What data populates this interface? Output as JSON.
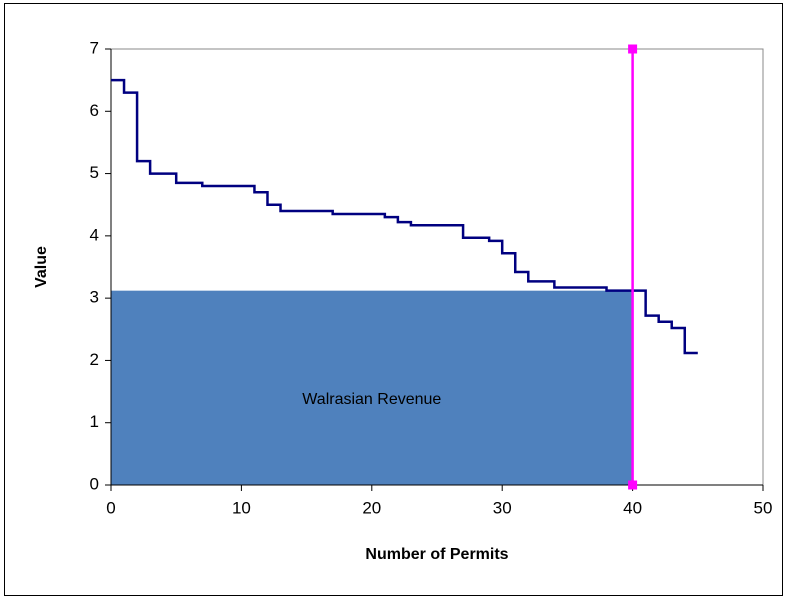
{
  "chart_data": {
    "type": "line",
    "x_label": "Number of Permits",
    "y_label": "Value",
    "xlim": [
      0,
      50
    ],
    "xticks": [
      0,
      10,
      20,
      30,
      40,
      50
    ],
    "ylim": [
      0,
      7
    ],
    "yticks": [
      0,
      1,
      2,
      3,
      4,
      5,
      6,
      7
    ],
    "grid": false,
    "series": [
      {
        "color": "#000080",
        "x": [
          0,
          1,
          1,
          2,
          2,
          3,
          3,
          5,
          5,
          7,
          7,
          11,
          11,
          12,
          12,
          13,
          13,
          17,
          17,
          21,
          21,
          22,
          22,
          23,
          23,
          27,
          27,
          29,
          29,
          30,
          30,
          31,
          31,
          32,
          32,
          34,
          34,
          38,
          38,
          41,
          41,
          42,
          42,
          43,
          43,
          44,
          44,
          45
        ],
        "values": [
          6.5,
          6.5,
          6.3,
          6.3,
          5.2,
          5.2,
          5.0,
          5.0,
          4.85,
          4.85,
          4.8,
          4.8,
          4.7,
          4.7,
          4.5,
          4.5,
          4.4,
          4.4,
          4.35,
          4.35,
          4.3,
          4.3,
          4.22,
          4.22,
          4.17,
          4.17,
          3.97,
          3.97,
          3.92,
          3.92,
          3.72,
          3.72,
          3.42,
          3.42,
          3.27,
          3.27,
          3.17,
          3.17,
          3.12,
          3.12,
          2.72,
          2.72,
          2.62,
          2.62,
          2.52,
          2.52,
          2.12,
          2.12
        ]
      }
    ],
    "revenue_area": {
      "label": "Walrasian Revenue",
      "x": [
        0,
        40
      ],
      "value": 3.12,
      "color": "#4f81bd"
    },
    "vline": {
      "x": [
        40,
        40
      ],
      "values": [
        0,
        7
      ],
      "color": "#ff00ff"
    }
  }
}
